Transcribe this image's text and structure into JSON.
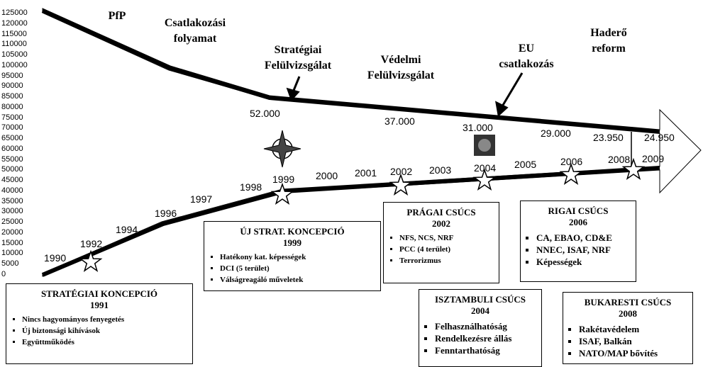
{
  "axis_labels": [
    "125000",
    "120000",
    "115000",
    "110000",
    "105000",
    "100000",
    "95000",
    "90000",
    "85000",
    "80000",
    "75000",
    "70000",
    "65000",
    "60000",
    "55000",
    "50000",
    "45000",
    "40000",
    "35000",
    "30000",
    "25000",
    "20000",
    "15000",
    "10000",
    "5000",
    "0"
  ],
  "phases": [
    [
      "PfP"
    ],
    [
      "Csatlakozási",
      "folyamat"
    ],
    [
      "Stratégiai",
      "Felülvizsgálat"
    ],
    [
      "Védelmi",
      "Felülvizsgálat"
    ],
    [
      "EU",
      "csatlakozás"
    ],
    [
      "Haderő",
      "reform"
    ]
  ],
  "force_numbers": [
    "52.000",
    "37.000",
    "31.000",
    "29.000",
    "23.950",
    "24.950"
  ],
  "years": [
    "1990",
    "1992",
    "1994",
    "1996",
    "1997",
    "1998",
    "1999",
    "2000",
    "2001",
    "2002",
    "2003",
    "2004",
    "2005",
    "2006",
    "2008",
    "2009"
  ],
  "boxes": [
    {
      "title": "STRATÉGIAI KONCEPCIÓ",
      "year": "1991",
      "items": [
        "Nincs hagyományos fenyegetés",
        "Új biztonsági kihívások",
        "Együttműködés"
      ]
    },
    {
      "title": "ÚJ STRAT. KONCEPCIÓ",
      "year": "1999",
      "items": [
        "Hatékony kat. képességek",
        "DCI (5 terület)",
        "Válságreagáló műveletek"
      ]
    },
    {
      "title": "PRÁGAI CSÚCS",
      "year": "2002",
      "items": [
        "NFS, NCS, NRF",
        "PCC (4 terület)",
        "Terrorizmus"
      ]
    },
    {
      "title": "RIGAI CSÚCS",
      "year": "2006",
      "items": [
        "CA, EBAO, CD&E",
        "NNEC, ISAF, NRF",
        "Képességek"
      ]
    },
    {
      "title": "ISZTAMBULI CSÚCS",
      "year": "2004",
      "items": [
        "Felhasználhatóság",
        "Rendelkezésre állás",
        "Fenntarthatóság"
      ]
    },
    {
      "title": "BUKARESTI CSÚCS",
      "year": "2008",
      "items": [
        "Rakétavédelem",
        "ISAF, Balkán",
        "NATO/MAP bővítés"
      ]
    }
  ]
}
